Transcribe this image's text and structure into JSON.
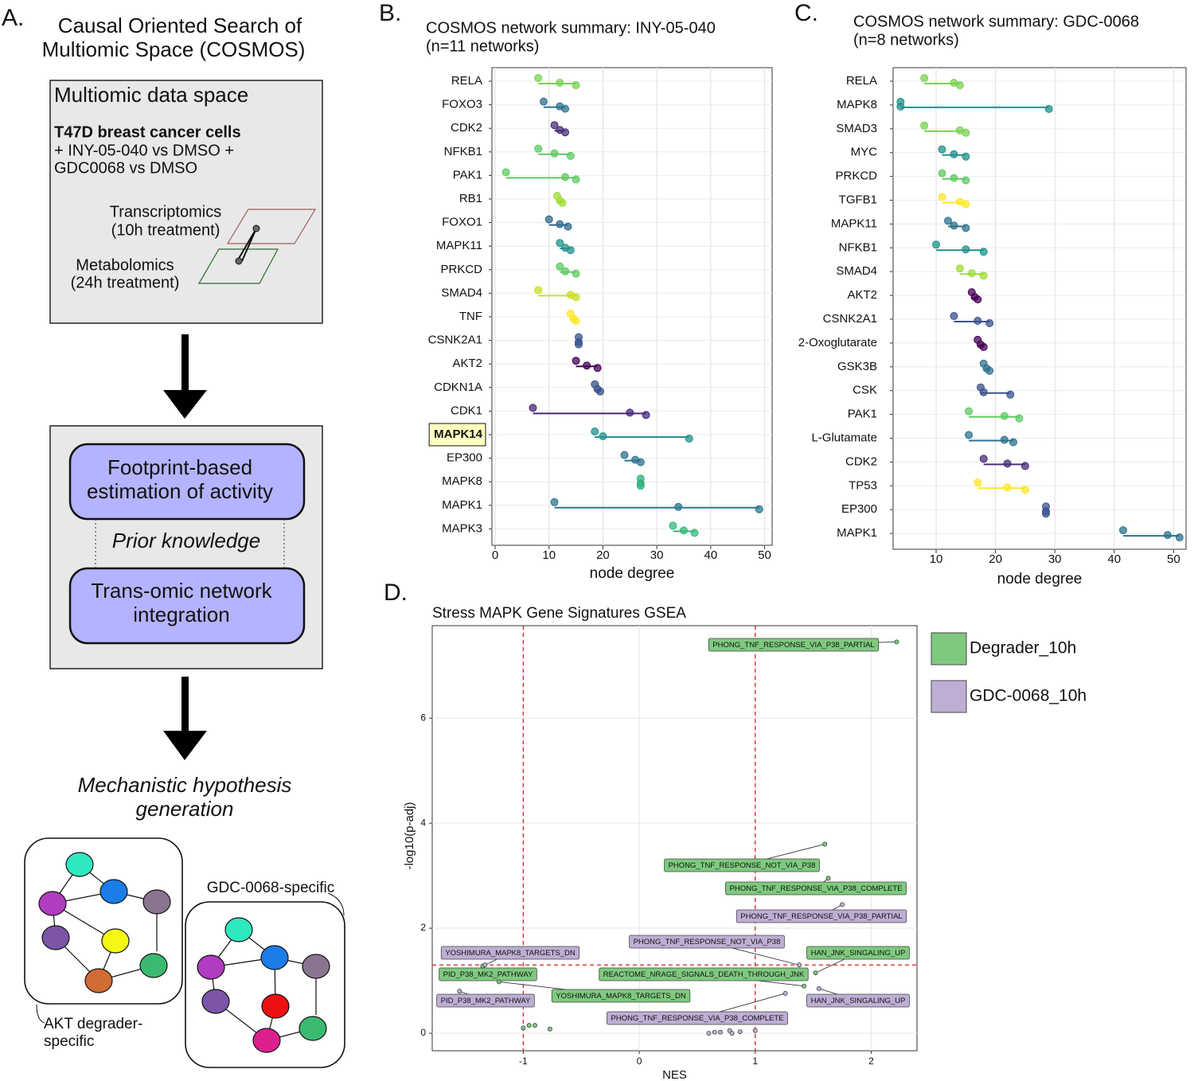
{
  "panel_a": {
    "letter": "A.",
    "title_line1": "Causal Oriented Search of",
    "title_line2": "Multiomic Space (COSMOS)",
    "box_title": "Multiomic data space",
    "cell_line": "T47D breast cancer cells",
    "treatment_line1": "+ INY-05-040 vs DMSO +",
    "treatment_line2": "GDC0068 vs DMSO",
    "transcriptomics": "Transcriptomics",
    "transcriptomics_time": "(10h treatment)",
    "metabolomics": "Metabolomics",
    "metabolomics_time": "(24h treatment)",
    "footprint_line1": "Footprint-based",
    "footprint_line2": "estimation of activity",
    "prior": "Prior knowledge",
    "network_line1": "Trans-omic network",
    "network_line2": "integration",
    "hypothesis_line1": "Mechanistic hypothesis",
    "hypothesis_line2": "generation",
    "gdc_specific": "GDC-0068-specific",
    "akt_line1": "AKT degrader-",
    "akt_line2": "specific"
  },
  "chart_data": [
    {
      "type": "range",
      "panel_label": "B.",
      "title": "COSMOS network summary: INY-05-040",
      "subtitle": "(n=11 networks)",
      "x_label": "node degree",
      "categories": [
        "RELA",
        "FOXO3",
        "CDK2",
        "NFKB1",
        "PAK1",
        "RB1",
        "FOXO1",
        "MAPK11",
        "PRKCD",
        "SMAD4",
        "TNF",
        "CSNK2A1",
        "AKT2",
        "CDKN1A",
        "CDK1",
        "MAPK14",
        "EP300",
        "MAPK8",
        "MAPK1",
        "MAPK3"
      ],
      "min": [
        8,
        9,
        11,
        8,
        2,
        11.5,
        10,
        12,
        12,
        8,
        14,
        15.5,
        15,
        18.5,
        7,
        18.5,
        24,
        27,
        11,
        33
      ],
      "median": [
        12,
        12,
        12,
        11,
        13,
        12,
        12,
        13,
        13,
        14,
        14.5,
        15.5,
        17,
        19,
        25,
        20,
        26,
        27,
        34,
        35
      ],
      "max": [
        15,
        13,
        13,
        14,
        15,
        12.5,
        13.5,
        14,
        15,
        15,
        15,
        15.5,
        19,
        19.5,
        28,
        36,
        27,
        27,
        49,
        37
      ],
      "colors": [
        "#7ad151",
        "#2c728e",
        "#472d7b",
        "#5ec962",
        "#5ec962",
        "#a0da39",
        "#31688e",
        "#21918c",
        "#5ec962",
        "#c8e020",
        "#fde725",
        "#3b528b",
        "#440154",
        "#3b528b",
        "#482878",
        "#21918c",
        "#2c728e",
        "#2db27d",
        "#2a788e",
        "#35b779"
      ],
      "highlight_index": 15,
      "xlim": [
        -0.6,
        51.4
      ],
      "xticks": [
        0,
        10,
        20,
        30,
        40,
        50
      ],
      "grid": true
    },
    {
      "type": "range",
      "panel_label": "C.",
      "title": "COSMOS network summary: GDC-0068",
      "subtitle": "(n=8 networks)",
      "x_label": "node degree",
      "categories": [
        "RELA",
        "MAPK8",
        "SMAD3",
        "MYC",
        "PRKCD",
        "TGFB1",
        "MAPK11",
        "NFKB1",
        "SMAD4",
        "AKT2",
        "CSNK2A1",
        "2-Oxoglutarate",
        "GSK3B",
        "CSK",
        "PAK1",
        "L-Glutamate",
        "CDK2",
        "TP53",
        "EP300",
        "MAPK1"
      ],
      "min": [
        8,
        4,
        8,
        11,
        11,
        11,
        12,
        10,
        14,
        16,
        13,
        17,
        18,
        17.5,
        15.5,
        15.5,
        18,
        17,
        28.5,
        41.5
      ],
      "median": [
        13,
        4,
        14,
        13,
        13,
        14,
        13,
        15,
        16,
        16.5,
        17,
        17.5,
        18.5,
        18,
        21.5,
        21.5,
        22,
        22,
        28.5,
        49
      ],
      "max": [
        14,
        29,
        15,
        15,
        15,
        15,
        15,
        18,
        18,
        17,
        19,
        18,
        19,
        22.5,
        24,
        23,
        25,
        25,
        28.5,
        51
      ],
      "colors": [
        "#7ad151",
        "#21918c",
        "#7ad151",
        "#21918c",
        "#5ec962",
        "#fde725",
        "#2c728e",
        "#21918c",
        "#a0da39",
        "#440154",
        "#3b528b",
        "#440154",
        "#2c728e",
        "#3b528b",
        "#5ec962",
        "#2c728e",
        "#472d7b",
        "#fde725",
        "#3b528b",
        "#2c728e"
      ],
      "xlim": [
        2.75,
        52.1
      ],
      "xticks": [
        10,
        20,
        30,
        40,
        50
      ],
      "grid": true
    },
    {
      "type": "scatter",
      "panel_label": "D.",
      "title": "Stress MAPK Gene Signatures GSEA",
      "x_label": "NES",
      "y_label": "-log10(p-adj)",
      "series": [
        {
          "name": "Degrader_10h",
          "color": "#7fc97f",
          "x": [
            2.22,
            1.6,
            1.63,
            1.52,
            1.42,
            -1.21,
            -1.35,
            -0.95,
            -1.0,
            -0.9,
            -0.77
          ],
          "values": [
            7.45,
            3.6,
            2.95,
            1.15,
            0.9,
            0.98,
            1.28,
            0.15,
            0.1,
            0.15,
            0.08
          ],
          "labels": [
            "PHONG_TNF_RESPONSE_VIA_P38_PARTIAL",
            "PHONG_TNF_RESPONSE_NOT_VIA_P38",
            "PHONG_TNF_RESPONSE_VIA_P38_COMPLETE",
            "HAN_JNK_SINGALING_UP",
            "REACTOME_NRAGE_SIGNALS_DEATH_THROUGH_JNK",
            "YOSHIMURA_MAPK8_TARGETS_DN",
            "PID_P38_MK2_PATHWAY",
            null,
            null,
            null,
            null
          ]
        },
        {
          "name": "GDC-0068_10h",
          "color": "#beaed4",
          "x": [
            1.75,
            1.38,
            1.55,
            1.26,
            -1.33,
            -1.55,
            0.6,
            0.65,
            0.7,
            0.78,
            0.8,
            0.87,
            1.0
          ],
          "values": [
            2.45,
            1.3,
            0.85,
            0.76,
            1.3,
            0.8,
            0.0,
            0.02,
            0.02,
            0.05,
            0.0,
            0.03,
            0.05
          ],
          "labels": [
            "PHONG_TNF_RESPONSE_VIA_P38_PARTIAL",
            "PHONG_TNF_RESPONSE_NOT_VIA_P38",
            "HAN_JNK_SINGALING_UP",
            "PHONG_TNF_RESPONSE_VIA_P38_COMPLETE",
            "YOSHIMURA_MAPK8_TARGETS_DN",
            "PID_P38_MK2_PATHWAY",
            null,
            null,
            null,
            null,
            null,
            null,
            null
          ]
        }
      ],
      "vlines": [
        -1,
        1
      ],
      "hline": 1.3,
      "xlim": [
        -1.785,
        2.395
      ],
      "ylim": [
        -0.333,
        7.76
      ],
      "xticks": [
        -1,
        0,
        1,
        2
      ],
      "yticks": [
        0,
        2,
        4,
        6
      ],
      "grid": true,
      "legend": "right"
    }
  ]
}
